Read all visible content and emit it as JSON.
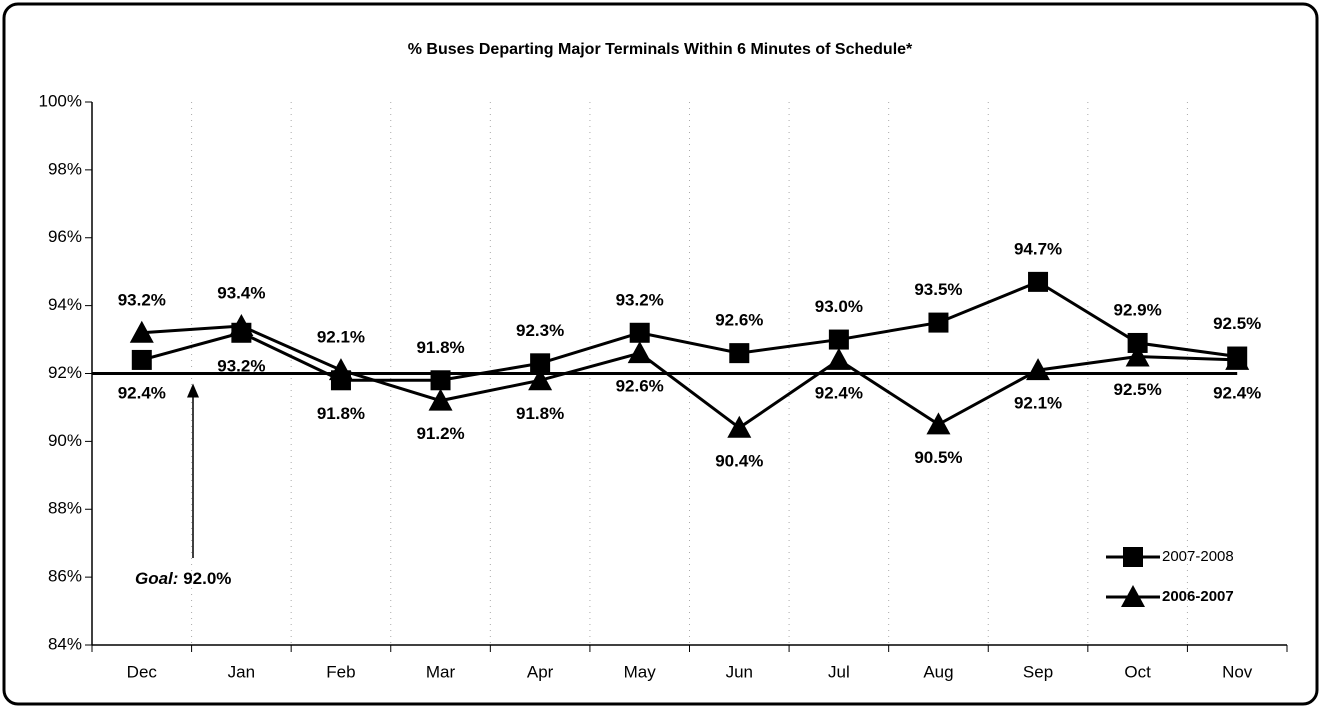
{
  "chart_data": {
    "type": "line",
    "title": "% Buses Departing Major Terminals Within 6 Minutes of Schedule*",
    "categories": [
      "Dec",
      "Jan",
      "Feb",
      "Mar",
      "Apr",
      "May",
      "Jun",
      "Jul",
      "Aug",
      "Sep",
      "Oct",
      "Nov"
    ],
    "series": [
      {
        "name": "2007-2008",
        "color": "#000000",
        "marker": "square",
        "values": [
          92.4,
          93.2,
          91.8,
          91.8,
          92.3,
          93.2,
          92.6,
          93.0,
          93.5,
          94.7,
          92.9,
          92.5
        ],
        "value_labels": [
          "92.4%",
          "93.2%",
          "91.8%",
          "91.8%",
          "92.3%",
          "93.2%",
          "92.6%",
          "93.0%",
          "93.5%",
          "94.7%",
          "92.9%",
          "92.5%"
        ]
      },
      {
        "name": "2006-2007",
        "color": "#000000",
        "marker": "triangle",
        "values": [
          93.2,
          93.4,
          92.1,
          91.2,
          91.8,
          92.6,
          90.4,
          92.4,
          90.5,
          92.1,
          92.5,
          92.4
        ],
        "value_labels": [
          "93.2%",
          "93.4%",
          "92.1%",
          "91.2%",
          "91.8%",
          "92.6%",
          "90.4%",
          "92.4%",
          "90.5%",
          "92.1%",
          "92.5%",
          "92.4%"
        ]
      }
    ],
    "goal": {
      "label": "Goal:",
      "value": 92,
      "value_label": "92.0%"
    },
    "ylim": [
      84,
      100
    ],
    "yticks": [
      {
        "value": 84,
        "label": "84%"
      },
      {
        "value": 86,
        "label": "86%"
      },
      {
        "value": 88,
        "label": "88%"
      },
      {
        "value": 90,
        "label": "90%"
      },
      {
        "value": 92,
        "label": "92%"
      },
      {
        "value": 94,
        "label": "94%"
      },
      {
        "value": 96,
        "label": "96%"
      },
      {
        "value": 98,
        "label": "98%"
      },
      {
        "value": 100,
        "label": "100%"
      }
    ],
    "grid": true,
    "legend": "lower right"
  }
}
